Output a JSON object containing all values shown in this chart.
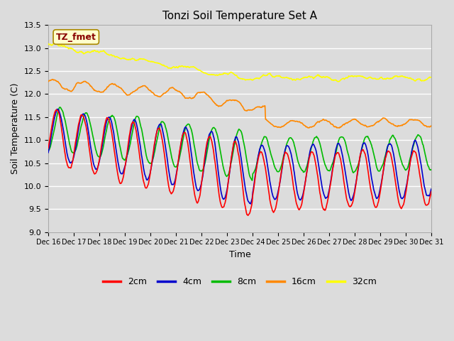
{
  "title": "Tonzi Soil Temperature Set A",
  "xlabel": "Time",
  "ylabel": "Soil Temperature (C)",
  "ylim": [
    9.0,
    13.5
  ],
  "background_color": "#dcdcdc",
  "plot_bg_color": "#dcdcdc",
  "legend_labels": [
    "2cm",
    "4cm",
    "8cm",
    "16cm",
    "32cm"
  ],
  "legend_colors": [
    "#ff0000",
    "#0000cc",
    "#00bb00",
    "#ff8800",
    "#ffff00"
  ],
  "annotation_text": "TZ_fmet",
  "annotation_bg": "#ffffcc",
  "annotation_fg": "#880000",
  "n_points": 720,
  "tick_labels": [
    "Dec 16",
    "Dec 17",
    "Dec 18",
    "Dec 19",
    "Dec 20",
    "Dec 21",
    "Dec 22",
    "Dec 23",
    "Dec 24",
    "Dec 25",
    "Dec 26",
    "Dec 27",
    "Dec 28",
    "Dec 29",
    "Dec 30",
    "Dec 31"
  ],
  "grid_color": "#ffffff",
  "line_width": 1.2
}
